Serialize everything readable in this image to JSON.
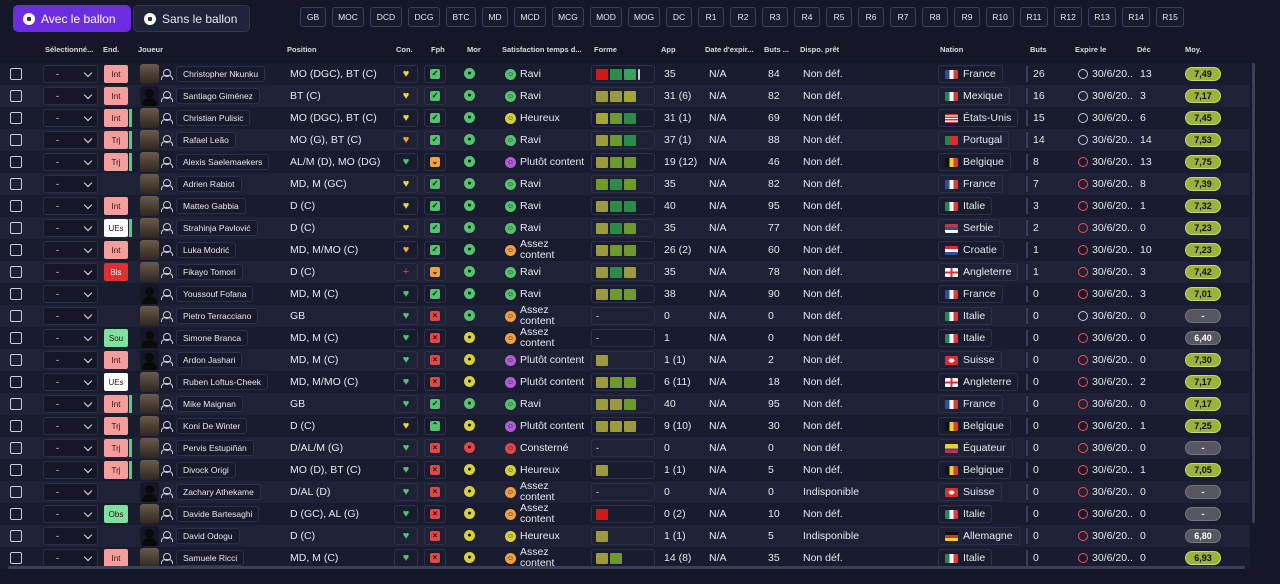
{
  "toggle": {
    "with_ball": "Avec le ballon",
    "without_ball": "Sans le ballon"
  },
  "positions": [
    "GB",
    "MOC",
    "DCD",
    "DCG",
    "BTC",
    "MD",
    "MCD",
    "MCG",
    "MOD",
    "MOG",
    "DC",
    "R1",
    "R2",
    "R3",
    "R4",
    "R5",
    "R6",
    "R7",
    "R8",
    "R9",
    "R10",
    "R11",
    "R12",
    "R13",
    "R14",
    "R15"
  ],
  "headers": {
    "selected": "Sélectionné...",
    "end": "End.",
    "player": "Joueur",
    "position": "Position",
    "con": "Con.",
    "fph": "Fph",
    "mor": "Mor",
    "satisfaction": "Satisfaction temps d...",
    "form": "Forme",
    "app": "App",
    "expiry": "Date d'expir...",
    "goals_conc": "Buts ...",
    "dispo": "Dispo. prêt",
    "nation": "Nation",
    "goals": "Buts",
    "expires": "Expire le",
    "dec": "Déc",
    "avg": "Moy."
  },
  "colors": {
    "accent": "#6a2de0",
    "green": "#57c26e",
    "red": "#e04848",
    "orange": "#f0a040",
    "yellow": "#e8d83a",
    "purple": "#b45ad6"
  },
  "rows": [
    {
      "sel": "-",
      "end": "Int",
      "end_color": "#f39d9d",
      "end_bar": false,
      "sil": false,
      "name": "Christopher Nkunku",
      "pos": "MO (DGC), BT (C)",
      "con": "y",
      "fph": "green",
      "mor": "green",
      "sat_face": "green",
      "sat": "Ravi",
      "form": [
        "#d01818",
        "#2e8a4a",
        "#3aa060"
      ],
      "form_extra": true,
      "app": "35",
      "exp": "N/A",
      "buts": "84",
      "dispo": "Non déf.",
      "nation": "France",
      "flag": "fr",
      "goals": "26",
      "clock": "w",
      "expire": "30/6/20..",
      "dec": "13",
      "avg": "7,49",
      "avg_type": "g"
    },
    {
      "sel": "-",
      "end": "Int",
      "end_color": "#f39d9d",
      "end_bar": false,
      "sil": true,
      "name": "Santiago Giménez",
      "pos": "BT (C)",
      "con": "y",
      "fph": "green",
      "mor": "green",
      "sat_face": "green",
      "sat": "Ravi",
      "form": [
        "#9b9a40",
        "#9b9a40",
        "#a3a535"
      ],
      "app": "31 (6)",
      "exp": "N/A",
      "buts": "82",
      "dispo": "Non déf.",
      "nation": "Mexique",
      "flag": "mx",
      "goals": "16",
      "clock": "w",
      "expire": "30/6/20..",
      "dec": "3",
      "avg": "7,17",
      "avg_type": "g"
    },
    {
      "sel": "-",
      "end": "Int",
      "end_color": "#f39d9d",
      "end_bar": true,
      "sil": false,
      "name": "Christian Pulisic",
      "pos": "MO (DGC), BT (C)",
      "con": "y",
      "fph": "green",
      "mor": "green",
      "sat_face": "yellow",
      "sat": "Heureux",
      "form": [
        "#a3a535",
        "#6d9a2a",
        "#2e8a4a"
      ],
      "app": "31 (1)",
      "exp": "N/A",
      "buts": "69",
      "dispo": "Non déf.",
      "nation": "États-Unis",
      "flag": "us",
      "goals": "15",
      "clock": "w",
      "expire": "30/6/20..",
      "dec": "6",
      "avg": "7,45",
      "avg_type": "g"
    },
    {
      "sel": "-",
      "end": "Trj",
      "end_color": "#f39d9d",
      "end_bar": true,
      "sil": false,
      "name": "Rafael Leão",
      "pos": "MO (G), BT (C)",
      "con": "o",
      "fph": "green",
      "mor": "green",
      "sat_face": "green",
      "sat": "Ravi",
      "form": [
        "#9b9a40",
        "#6d9a2a",
        "#2e8a4a"
      ],
      "app": "37 (1)",
      "exp": "N/A",
      "buts": "88",
      "dispo": "Non déf.",
      "nation": "Portugal",
      "flag": "pt",
      "goals": "14",
      "clock": "w",
      "expire": "30/6/20..",
      "dec": "14",
      "avg": "7,53",
      "avg_type": "g"
    },
    {
      "sel": "-",
      "end": "Trj",
      "end_color": "#f39d9d",
      "end_bar": true,
      "sil": false,
      "name": "Alexis Saelemaekers",
      "pos": "AL/M (D), MO (DG)",
      "con": "g",
      "fph": "orange",
      "mor": "green",
      "sat_face": "purple",
      "sat": "Plutôt content",
      "form": [
        "#9b9a40",
        "#6d9a2a",
        "#6d9a2a"
      ],
      "app": "19 (12)",
      "exp": "N/A",
      "buts": "46",
      "dispo": "Non déf.",
      "nation": "Belgique",
      "flag": "be",
      "goals": "8",
      "clock": "r",
      "expire": "30/6/20..",
      "dec": "13",
      "avg": "7,75",
      "avg_type": "g"
    },
    {
      "sel": "-",
      "end": "",
      "end_color": "",
      "end_bar": false,
      "sil": false,
      "name": "Adrien Rabiot",
      "pos": "MD, M (GC)",
      "con": "y",
      "fph": "green",
      "mor": "green",
      "sat_face": "green",
      "sat": "Ravi",
      "form": [
        "#6d9a2a",
        "#2e8a4a",
        "#6d9a2a"
      ],
      "app": "35",
      "exp": "N/A",
      "buts": "82",
      "dispo": "Non déf.",
      "nation": "France",
      "flag": "fr",
      "goals": "7",
      "clock": "r",
      "expire": "30/6/20..",
      "dec": "8",
      "avg": "7,39",
      "avg_type": "g"
    },
    {
      "sel": "-",
      "end": "Int",
      "end_color": "#f39d9d",
      "end_bar": false,
      "sil": false,
      "name": "Matteo Gabbia",
      "pos": "D (C)",
      "con": "y",
      "fph": "green",
      "mor": "green",
      "sat_face": "green",
      "sat": "Ravi",
      "form": [
        "#9b9a40",
        "#2e8a4a",
        "#2e8a4a"
      ],
      "app": "40",
      "exp": "N/A",
      "buts": "95",
      "dispo": "Non déf.",
      "nation": "Italie",
      "flag": "it",
      "goals": "3",
      "clock": "r",
      "expire": "30/6/20..",
      "dec": "1",
      "avg": "7,32",
      "avg_type": "g"
    },
    {
      "sel": "-",
      "end": "UEs",
      "end_color": "#ffffff",
      "end_bar": true,
      "sil": false,
      "name": "Strahinja Pavlović",
      "pos": "D (C)",
      "con": "y",
      "fph": "green",
      "mor": "green",
      "sat_face": "green",
      "sat": "Ravi",
      "form": [
        "#9b9a40",
        "#2e8a4a",
        "#6d9a2a"
      ],
      "app": "35",
      "exp": "N/A",
      "buts": "77",
      "dispo": "Non déf.",
      "nation": "Serbie",
      "flag": "rs",
      "goals": "2",
      "clock": "r",
      "expire": "30/6/20..",
      "dec": "0",
      "avg": "7,23",
      "avg_type": "g"
    },
    {
      "sel": "-",
      "end": "Int",
      "end_color": "#f39d9d",
      "end_bar": false,
      "sil": false,
      "name": "Luka Modrić",
      "pos": "MD, M/MO (C)",
      "con": "o",
      "fph": "green",
      "mor": "green",
      "sat_face": "orange",
      "sat": "Assez content",
      "form": [
        "#9b9a40",
        "#6d9a2a",
        "#6d9a2a"
      ],
      "app": "26 (2)",
      "exp": "N/A",
      "buts": "60",
      "dispo": "Non déf.",
      "nation": "Croatie",
      "flag": "hr",
      "goals": "1",
      "clock": "r",
      "expire": "30/6/20..",
      "dec": "10",
      "avg": "7,23",
      "avg_type": "g"
    },
    {
      "sel": "-",
      "end": "Bls",
      "end_color": "#e03030",
      "end_bar": false,
      "sil": false,
      "name": "Fikayo Tomori",
      "pos": "D (C)",
      "con": "r",
      "fph": "orange",
      "mor": "green",
      "sat_face": "green",
      "sat": "Ravi",
      "form": [
        "#9b9a40",
        "#2e8a4a",
        "#9b9a40"
      ],
      "app": "35",
      "exp": "N/A",
      "buts": "78",
      "dispo": "Non déf.",
      "nation": "Angleterre",
      "flag": "en",
      "goals": "1",
      "clock": "r",
      "expire": "30/6/20..",
      "dec": "3",
      "avg": "7,42",
      "avg_type": "g"
    },
    {
      "sel": "-",
      "end": "",
      "end_color": "",
      "end_bar": false,
      "sil": true,
      "name": "Youssouf Fofana",
      "pos": "MD, M (C)",
      "con": "g",
      "fph": "green",
      "mor": "green",
      "sat_face": "green",
      "sat": "Ravi",
      "form": [
        "#9b9a40",
        "#6d9a2a",
        "#6d9a2a"
      ],
      "app": "38",
      "exp": "N/A",
      "buts": "90",
      "dispo": "Non déf.",
      "nation": "France",
      "flag": "fr",
      "goals": "0",
      "clock": "r",
      "expire": "30/6/20..",
      "dec": "3",
      "avg": "7,01",
      "avg_type": "g"
    },
    {
      "sel": "-",
      "end": "",
      "end_color": "",
      "end_bar": false,
      "sil": false,
      "name": "Pietro Terracciano",
      "pos": "GB",
      "con": "g",
      "fph": "red",
      "mor": "green",
      "sat_face": "orange",
      "sat": "Assez content",
      "form": [],
      "form_text": "-",
      "app": "0",
      "exp": "N/A",
      "buts": "0",
      "dispo": "Non déf.",
      "nation": "Italie",
      "flag": "it",
      "goals": "0",
      "clock": "w",
      "expire": "30/6/20..",
      "dec": "0",
      "avg": "-",
      "avg_type": "n"
    },
    {
      "sel": "-",
      "end": "Sou",
      "end_color": "#7fe0a0",
      "end_bar": false,
      "sil": true,
      "name": "Simone Branca",
      "pos": "MD, M (C)",
      "con": "g",
      "fph": "red",
      "mor": "yellow",
      "sat_face": "orange",
      "sat": "Assez content",
      "form": [],
      "form_text": "-",
      "app": "1",
      "exp": "N/A",
      "buts": "0",
      "dispo": "Non déf.",
      "nation": "Italie",
      "flag": "it",
      "goals": "0",
      "clock": "r",
      "expire": "30/6/20..",
      "dec": "0",
      "avg": "6,40",
      "avg_type": "n"
    },
    {
      "sel": "-",
      "end": "Int",
      "end_color": "#f39d9d",
      "end_bar": false,
      "sil": true,
      "name": "Ardon Jashari",
      "pos": "MD, M (C)",
      "con": "g",
      "fph": "red",
      "mor": "yellow",
      "sat_face": "purple",
      "sat": "Plutôt content",
      "form": [
        "#9b9a40"
      ],
      "app": "1 (1)",
      "exp": "N/A",
      "buts": "2",
      "dispo": "Non déf.",
      "nation": "Suisse",
      "flag": "ch",
      "goals": "0",
      "clock": "r",
      "expire": "30/6/20..",
      "dec": "0",
      "avg": "7,30",
      "avg_type": "g"
    },
    {
      "sel": "-",
      "end": "UEs",
      "end_color": "#ffffff",
      "end_bar": false,
      "sil": false,
      "name": "Ruben Loftus-Cheek",
      "pos": "MD, M/MO (C)",
      "con": "g",
      "fph": "red",
      "mor": "yellow",
      "sat_face": "purple",
      "sat": "Plutôt content",
      "form": [
        "#9b9a40",
        "#6d9a2a",
        "#6d9a2a"
      ],
      "app": "6 (11)",
      "exp": "N/A",
      "buts": "18",
      "dispo": "Non déf.",
      "nation": "Angleterre",
      "flag": "en",
      "goals": "0",
      "clock": "r",
      "expire": "30/6/20..",
      "dec": "2",
      "avg": "7,17",
      "avg_type": "g"
    },
    {
      "sel": "-",
      "end": "Int",
      "end_color": "#f39d9d",
      "end_bar": true,
      "sil": false,
      "name": "Mike Maignan",
      "pos": "GB",
      "con": "g",
      "fph": "green",
      "mor": "green",
      "sat_face": "green",
      "sat": "Ravi",
      "form": [
        "#9b9a40",
        "#9b9a40",
        "#6d9a2a"
      ],
      "app": "40",
      "exp": "N/A",
      "buts": "95",
      "dispo": "Non déf.",
      "nation": "France",
      "flag": "fr",
      "goals": "0",
      "clock": "r",
      "expire": "30/6/20..",
      "dec": "0",
      "avg": "7,17",
      "avg_type": "g"
    },
    {
      "sel": "-",
      "end": "Trj",
      "end_color": "#f39d9d",
      "end_bar": false,
      "sil": false,
      "name": "Koni De Winter",
      "pos": "D (C)",
      "con": "y",
      "fph": "green2",
      "mor": "yellow",
      "sat_face": "purple",
      "sat": "Plutôt content",
      "form": [
        "#9b9a40",
        "#9b9a40",
        "#9b9a40"
      ],
      "app": "9 (10)",
      "exp": "N/A",
      "buts": "30",
      "dispo": "Non déf.",
      "nation": "Belgique",
      "flag": "be",
      "goals": "0",
      "clock": "r",
      "expire": "30/6/20..",
      "dec": "1",
      "avg": "7,25",
      "avg_type": "g"
    },
    {
      "sel": "-",
      "end": "Trj",
      "end_color": "#f39d9d",
      "end_bar": true,
      "sil": false,
      "name": "Pervis Estupiñán",
      "pos": "D/AL/M (G)",
      "con": "g",
      "fph": "red",
      "mor": "red",
      "sat_face": "red",
      "sat": "Consterné",
      "form": [],
      "form_text": "-",
      "app": "0",
      "exp": "N/A",
      "buts": "0",
      "dispo": "Non déf.",
      "nation": "Équateur",
      "flag": "ec",
      "goals": "0",
      "clock": "r",
      "expire": "30/6/20..",
      "dec": "0",
      "avg": "-",
      "avg_type": "n"
    },
    {
      "sel": "-",
      "end": "Trj",
      "end_color": "#f39d9d",
      "end_bar": true,
      "sil": false,
      "name": "Divock Origi",
      "pos": "MO (D), BT (C)",
      "con": "g",
      "fph": "red",
      "mor": "yellow",
      "sat_face": "yellow",
      "sat": "Heureux",
      "form": [
        "#9b9a40"
      ],
      "app": "1 (1)",
      "exp": "N/A",
      "buts": "5",
      "dispo": "Non déf.",
      "nation": "Belgique",
      "flag": "be",
      "goals": "0",
      "clock": "r",
      "expire": "30/6/20..",
      "dec": "1",
      "avg": "7,05",
      "avg_type": "g"
    },
    {
      "sel": "-",
      "end": "",
      "end_color": "",
      "end_bar": false,
      "sil": true,
      "name": "Zachary Athekame",
      "pos": "D/AL (D)",
      "con": "g",
      "fph": "red",
      "mor": "yellow",
      "sat_face": "orange",
      "sat": "Assez content",
      "form": [],
      "form_text": "-",
      "app": "0",
      "exp": "N/A",
      "buts": "0",
      "dispo": "Indisponible",
      "nation": "Suisse",
      "flag": "ch",
      "goals": "0",
      "clock": "r",
      "expire": "30/6/20..",
      "dec": "0",
      "avg": "-",
      "avg_type": "n"
    },
    {
      "sel": "-",
      "end": "Obs",
      "end_color": "#7fe0a0",
      "end_bar": false,
      "sil": false,
      "name": "Davide Bartesaghi",
      "pos": "D (GC), AL (G)",
      "con": "g",
      "fph": "red",
      "mor": "yellow",
      "sat_face": "orange",
      "sat": "Assez content",
      "form": [
        "#d01818"
      ],
      "app": "0 (2)",
      "exp": "N/A",
      "buts": "10",
      "dispo": "Non déf.",
      "nation": "Italie",
      "flag": "it",
      "goals": "0",
      "clock": "r",
      "expire": "30/6/20..",
      "dec": "0",
      "avg": "-",
      "avg_type": "n"
    },
    {
      "sel": "-",
      "end": "",
      "end_color": "",
      "end_bar": false,
      "sil": true,
      "name": "David Odogu",
      "pos": "D (C)",
      "con": "g",
      "fph": "red",
      "mor": "yellow",
      "sat_face": "yellow",
      "sat": "Heureux",
      "form": [
        "#9b9a40"
      ],
      "app": "1 (1)",
      "exp": "N/A",
      "buts": "5",
      "dispo": "Indisponible",
      "nation": "Allemagne",
      "flag": "de",
      "goals": "0",
      "clock": "r",
      "expire": "30/6/20..",
      "dec": "0",
      "avg": "6,80",
      "avg_type": "n"
    },
    {
      "sel": "-",
      "end": "Int",
      "end_color": "#f39d9d",
      "end_bar": false,
      "sil": false,
      "name": "Samuele Ricci",
      "pos": "MD, M (C)",
      "con": "g",
      "fph": "red",
      "mor": "yellow",
      "sat_face": "orange",
      "sat": "Assez content",
      "form": [
        "#9b9a40",
        "#6d9a2a"
      ],
      "app": "14 (8)",
      "exp": "N/A",
      "buts": "35",
      "dispo": "Non déf.",
      "nation": "Italie",
      "flag": "it",
      "goals": "0",
      "clock": "r",
      "expire": "30/6/20..",
      "dec": "0",
      "avg": "6,93",
      "avg_type": "g"
    }
  ]
}
